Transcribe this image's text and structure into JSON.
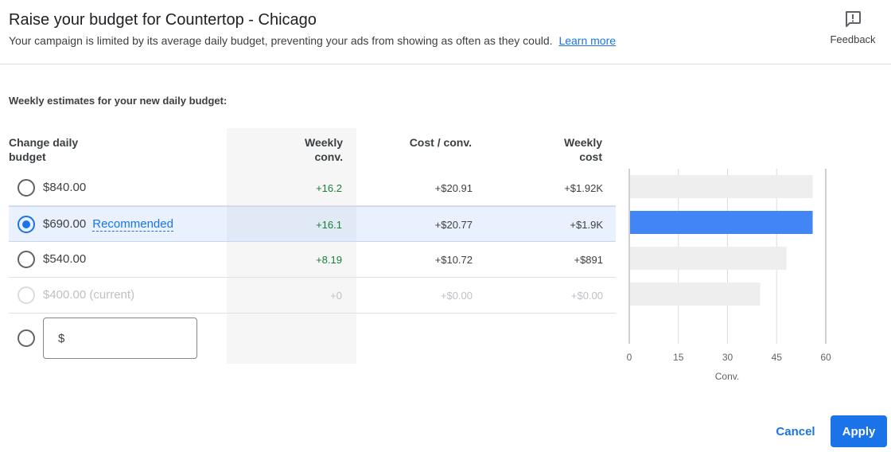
{
  "header": {
    "title": "Raise your budget for Countertop - Chicago",
    "subtitle": "Your campaign is limited by its average daily budget, preventing your ads from showing as often as they could.",
    "learn_more": "Learn more",
    "feedback_label": "Feedback"
  },
  "section_label": "Weekly estimates for your new daily budget:",
  "table": {
    "col_budget": "Change daily budget",
    "col_conv": "Weekly conv.",
    "col_cpc": "Cost / conv.",
    "col_cost": "Weekly cost",
    "rows": [
      {
        "budget": "$840.00",
        "tag": "",
        "conv": "+16.2",
        "cost_per_conv": "+$20.91",
        "weekly_cost": "+$1.92K",
        "selected": false,
        "disabled": false
      },
      {
        "budget": "$690.00",
        "tag": "Recommended",
        "conv": "+16.1",
        "cost_per_conv": "+$20.77",
        "weekly_cost": "+$1.9K",
        "selected": true,
        "disabled": false
      },
      {
        "budget": "$540.00",
        "tag": "",
        "conv": "+8.19",
        "cost_per_conv": "+$10.72",
        "weekly_cost": "+$891",
        "selected": false,
        "disabled": false
      },
      {
        "budget": "$400.00 (current)",
        "tag": "",
        "conv": "+0",
        "cost_per_conv": "+$0.00",
        "weekly_cost": "+$0.00",
        "selected": false,
        "disabled": true
      }
    ],
    "custom_prefix": "$",
    "custom_value": ""
  },
  "chart_data": {
    "type": "bar",
    "orientation": "horizontal",
    "categories": [
      "$840.00",
      "$690.00",
      "$540.00",
      "$400.00 (current)"
    ],
    "values": [
      56,
      56,
      48,
      40
    ],
    "highlight_index": 1,
    "xlabel": "Conv.",
    "xticks": [
      0,
      15,
      30,
      45,
      60
    ],
    "xlim": [
      0,
      60
    ],
    "grid": true,
    "colors": {
      "bar": "#eeeeee",
      "highlight": "#4285f4",
      "grid": "#dadce0"
    }
  },
  "actions": {
    "cancel": "Cancel",
    "apply": "Apply"
  },
  "colors": {
    "accent": "#1a73e8",
    "positive": "#188038"
  }
}
